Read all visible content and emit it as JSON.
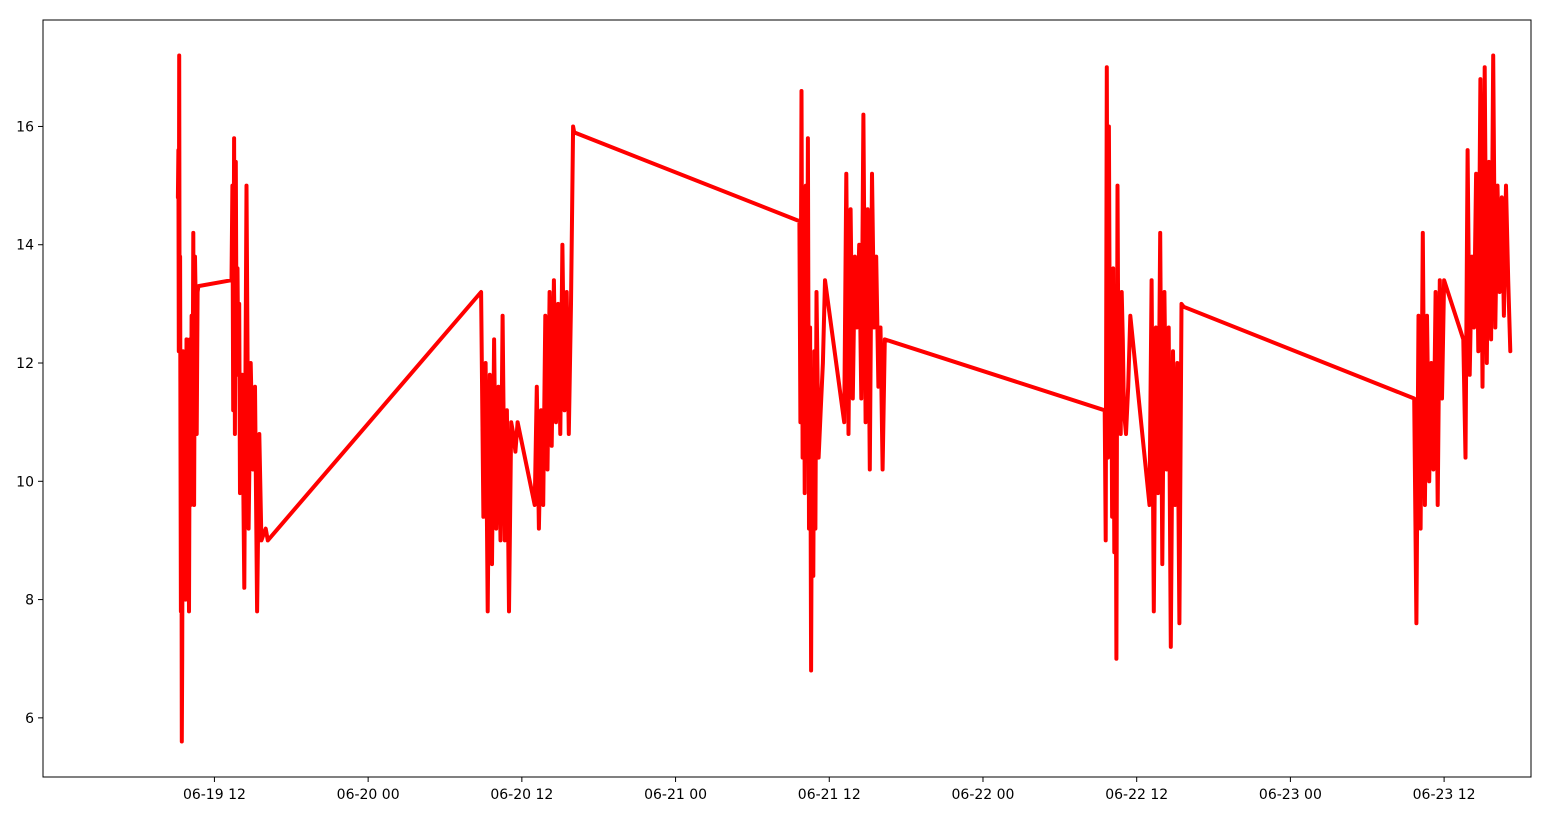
{
  "chart_data": {
    "type": "line",
    "title": "",
    "xlabel": "",
    "ylabel": "",
    "grid": false,
    "line_color": "#ff0000",
    "xlim": [
      "2023-06-18 22:37",
      "2023-06-23 18:47"
    ],
    "ylim": [
      5.0,
      17.8
    ],
    "x_ticks": [
      {
        "value": "2023-06-19 12:00",
        "label": "06-19 12"
      },
      {
        "value": "2023-06-20 00:00",
        "label": "06-20 00"
      },
      {
        "value": "2023-06-20 12:00",
        "label": "06-20 12"
      },
      {
        "value": "2023-06-21 00:00",
        "label": "06-21 00"
      },
      {
        "value": "2023-06-21 12:00",
        "label": "06-21 12"
      },
      {
        "value": "2023-06-22 00:00",
        "label": "06-22 00"
      },
      {
        "value": "2023-06-22 12:00",
        "label": "06-22 12"
      },
      {
        "value": "2023-06-23 00:00",
        "label": "06-23 00"
      },
      {
        "value": "2023-06-23 12:00",
        "label": "06-23 12"
      }
    ],
    "y_ticks": [
      {
        "value": 6,
        "label": "6"
      },
      {
        "value": 8,
        "label": "8"
      },
      {
        "value": 10,
        "label": "10"
      },
      {
        "value": 12,
        "label": "12"
      },
      {
        "value": 14,
        "label": "14"
      },
      {
        "value": 16,
        "label": "16"
      }
    ],
    "series": [
      {
        "x": [
          "2023-06-19 09:09",
          "2023-06-19 09:11",
          "2023-06-19 09:13",
          "2023-06-19 09:15",
          "2023-06-19 09:17",
          "2023-06-19 09:19",
          "2023-06-19 09:21",
          "2023-06-19 09:23",
          "2023-06-19 09:25",
          "2023-06-19 09:27",
          "2023-06-19 09:29",
          "2023-06-19 09:33",
          "2023-06-19 09:37",
          "2023-06-19 09:41",
          "2023-06-19 09:45",
          "2023-06-19 09:49",
          "2023-06-19 09:53",
          "2023-06-19 09:57",
          "2023-06-19 10:01",
          "2023-06-19 10:05",
          "2023-06-19 10:09",
          "2023-06-19 10:13",
          "2023-06-19 10:17",
          "2023-06-19 10:21",
          "2023-06-19 10:25",
          "2023-06-19 10:29",
          "2023-06-19 10:33",
          "2023-06-19 10:37",
          "2023-06-19 10:41",
          "2023-06-19 10:45",
          "2023-06-19 13:20",
          "2023-06-19 13:24",
          "2023-06-19 13:28",
          "2023-06-19 13:32",
          "2023-06-19 13:36",
          "2023-06-19 13:40",
          "2023-06-19 13:44",
          "2023-06-19 13:48",
          "2023-06-19 13:52",
          "2023-06-19 13:56",
          "2023-06-19 14:00",
          "2023-06-19 14:10",
          "2023-06-19 14:20",
          "2023-06-19 14:30",
          "2023-06-19 14:40",
          "2023-06-19 14:50",
          "2023-06-19 15:00",
          "2023-06-19 15:10",
          "2023-06-19 15:20",
          "2023-06-19 15:30",
          "2023-06-19 15:40",
          "2023-06-19 15:50",
          "2023-06-19 16:00",
          "2023-06-19 16:10",
          "2023-06-20 08:49",
          "2023-06-20 09:00",
          "2023-06-20 09:10",
          "2023-06-20 09:20",
          "2023-06-20 09:30",
          "2023-06-20 09:40",
          "2023-06-20 09:50",
          "2023-06-20 10:00",
          "2023-06-20 10:10",
          "2023-06-20 10:20",
          "2023-06-20 10:30",
          "2023-06-20 10:40",
          "2023-06-20 10:50",
          "2023-06-20 11:00",
          "2023-06-20 11:10",
          "2023-06-20 11:20",
          "2023-06-20 11:30",
          "2023-06-20 11:40",
          "2023-06-20 13:00",
          "2023-06-20 13:10",
          "2023-06-20 13:20",
          "2023-06-20 13:30",
          "2023-06-20 13:40",
          "2023-06-20 13:50",
          "2023-06-20 14:00",
          "2023-06-20 14:10",
          "2023-06-20 14:20",
          "2023-06-20 14:30",
          "2023-06-20 14:40",
          "2023-06-20 14:50",
          "2023-06-20 15:00",
          "2023-06-20 15:10",
          "2023-06-20 15:20",
          "2023-06-20 15:30",
          "2023-06-20 15:40",
          "2023-06-20 15:50",
          "2023-06-20 16:00",
          "2023-06-20 16:05",
          "2023-06-21 09:40",
          "2023-06-21 09:45",
          "2023-06-21 09:50",
          "2023-06-21 09:55",
          "2023-06-21 10:00",
          "2023-06-21 10:05",
          "2023-06-21 10:10",
          "2023-06-21 10:15",
          "2023-06-21 10:20",
          "2023-06-21 10:25",
          "2023-06-21 10:30",
          "2023-06-21 10:35",
          "2023-06-21 10:40",
          "2023-06-21 10:45",
          "2023-06-21 10:50",
          "2023-06-21 10:55",
          "2023-06-21 11:00",
          "2023-06-21 11:10",
          "2023-06-21 11:20",
          "2023-06-21 11:30",
          "2023-06-21 11:40",
          "2023-06-21 13:10",
          "2023-06-21 13:20",
          "2023-06-21 13:30",
          "2023-06-21 13:40",
          "2023-06-21 13:50",
          "2023-06-21 14:00",
          "2023-06-21 14:10",
          "2023-06-21 14:20",
          "2023-06-21 14:30",
          "2023-06-21 14:40",
          "2023-06-21 14:50",
          "2023-06-21 15:00",
          "2023-06-21 15:10",
          "2023-06-21 15:20",
          "2023-06-21 15:30",
          "2023-06-21 15:40",
          "2023-06-21 15:50",
          "2023-06-21 16:00",
          "2023-06-21 16:10",
          "2023-06-21 16:20",
          "2023-06-22 09:30",
          "2023-06-22 09:35",
          "2023-06-22 09:40",
          "2023-06-22 09:45",
          "2023-06-22 09:50",
          "2023-06-22 09:55",
          "2023-06-22 10:00",
          "2023-06-22 10:05",
          "2023-06-22 10:10",
          "2023-06-22 10:15",
          "2023-06-22 10:20",
          "2023-06-22 10:25",
          "2023-06-22 10:30",
          "2023-06-22 10:35",
          "2023-06-22 10:40",
          "2023-06-22 10:45",
          "2023-06-22 10:50",
          "2023-06-22 10:55",
          "2023-06-22 11:00",
          "2023-06-22 11:10",
          "2023-06-22 11:20",
          "2023-06-22 11:30",
          "2023-06-22 13:00",
          "2023-06-22 13:10",
          "2023-06-22 13:20",
          "2023-06-22 13:30",
          "2023-06-22 13:40",
          "2023-06-22 13:50",
          "2023-06-22 14:00",
          "2023-06-22 14:10",
          "2023-06-22 14:20",
          "2023-06-22 14:30",
          "2023-06-22 14:40",
          "2023-06-22 14:50",
          "2023-06-22 15:00",
          "2023-06-22 15:10",
          "2023-06-22 15:20",
          "2023-06-22 15:30",
          "2023-06-22 15:40",
          "2023-06-23 09:40",
          "2023-06-23 09:50",
          "2023-06-23 10:00",
          "2023-06-23 10:10",
          "2023-06-23 10:20",
          "2023-06-23 10:30",
          "2023-06-23 10:40",
          "2023-06-23 10:50",
          "2023-06-23 11:00",
          "2023-06-23 11:10",
          "2023-06-23 11:20",
          "2023-06-23 11:30",
          "2023-06-23 11:40",
          "2023-06-23 11:50",
          "2023-06-23 12:00",
          "2023-06-23 13:30",
          "2023-06-23 13:40",
          "2023-06-23 13:50",
          "2023-06-23 14:00",
          "2023-06-23 14:10",
          "2023-06-23 14:20",
          "2023-06-23 14:30",
          "2023-06-23 14:40",
          "2023-06-23 14:50",
          "2023-06-23 15:00",
          "2023-06-23 15:10",
          "2023-06-23 15:20",
          "2023-06-23 15:30",
          "2023-06-23 15:40",
          "2023-06-23 15:50",
          "2023-06-23 16:00",
          "2023-06-23 16:10",
          "2023-06-23 16:20",
          "2023-06-23 16:30",
          "2023-06-23 16:40",
          "2023-06-23 16:50",
          "2023-06-23 17:00",
          "2023-06-23 17:10"
        ],
        "y": [
          14.8,
          15.6,
          12.2,
          17.2,
          12.5,
          13.8,
          10.6,
          7.8,
          12.0,
          5.6,
          7.0,
          12.2,
          8.2,
          11.4,
          8.0,
          12.4,
          9.0,
          10.4,
          7.8,
          12.4,
          9.6,
          12.8,
          10.2,
          14.2,
          9.6,
          13.8,
          12.8,
          10.8,
          13.2,
          13.3,
          13.4,
          15.0,
          11.2,
          15.8,
          10.8,
          15.4,
          12.0,
          13.6,
          11.8,
          13.0,
          9.8,
          11.8,
          8.2,
          15.0,
          9.2,
          12.0,
          10.2,
          11.6,
          7.8,
          10.8,
          9.0,
          9.1,
          9.2,
          9.0,
          13.2,
          9.4,
          12.0,
          7.8,
          11.8,
          8.6,
          12.4,
          9.2,
          11.6,
          9.0,
          12.8,
          9.0,
          11.2,
          7.8,
          11.0,
          10.8,
          10.5,
          11.0,
          9.6,
          11.6,
          9.2,
          11.2,
          9.6,
          12.8,
          10.2,
          13.2,
          10.6,
          13.4,
          11.0,
          13.0,
          10.8,
          14.0,
          11.2,
          13.2,
          10.8,
          13.0,
          16.0,
          15.9,
          14.4,
          11.0,
          16.6,
          10.4,
          14.6,
          9.8,
          15.0,
          10.6,
          15.8,
          9.2,
          12.6,
          6.8,
          11.8,
          8.4,
          12.2,
          9.2,
          13.2,
          10.4,
          11.2,
          12.0,
          13.4,
          11.0,
          15.2,
          10.8,
          14.6,
          11.4,
          13.8,
          12.6,
          14.0,
          11.4,
          16.2,
          11.0,
          14.6,
          10.2,
          15.2,
          12.6,
          13.8,
          11.6,
          12.6,
          10.2,
          12.4,
          11.2,
          9.0,
          17.0,
          10.4,
          16.0,
          11.4,
          13.2,
          9.4,
          13.6,
          8.8,
          13.0,
          7.0,
          15.0,
          11.6,
          12.8,
          10.8,
          13.2,
          12.4,
          11.2,
          10.8,
          11.6,
          12.8,
          9.6,
          13.4,
          7.8,
          12.6,
          9.8,
          14.2,
          8.6,
          13.2,
          10.2,
          12.6,
          7.2,
          12.2,
          9.6,
          12.0,
          7.6,
          13.0,
          12.95,
          11.4,
          7.6,
          12.8,
          9.2,
          14.2,
          9.6,
          12.8,
          10.0,
          12.0,
          10.2,
          13.2,
          9.6,
          13.4,
          11.4,
          13.4,
          12.4,
          10.4,
          15.6,
          11.8,
          13.8,
          12.6,
          15.2,
          12.2,
          16.8,
          11.6,
          17.0,
          12.0,
          15.4,
          12.4,
          17.2,
          12.6,
          15.0,
          13.2,
          14.8,
          12.8,
          15.0,
          13.4,
          12.2
        ]
      }
    ]
  }
}
